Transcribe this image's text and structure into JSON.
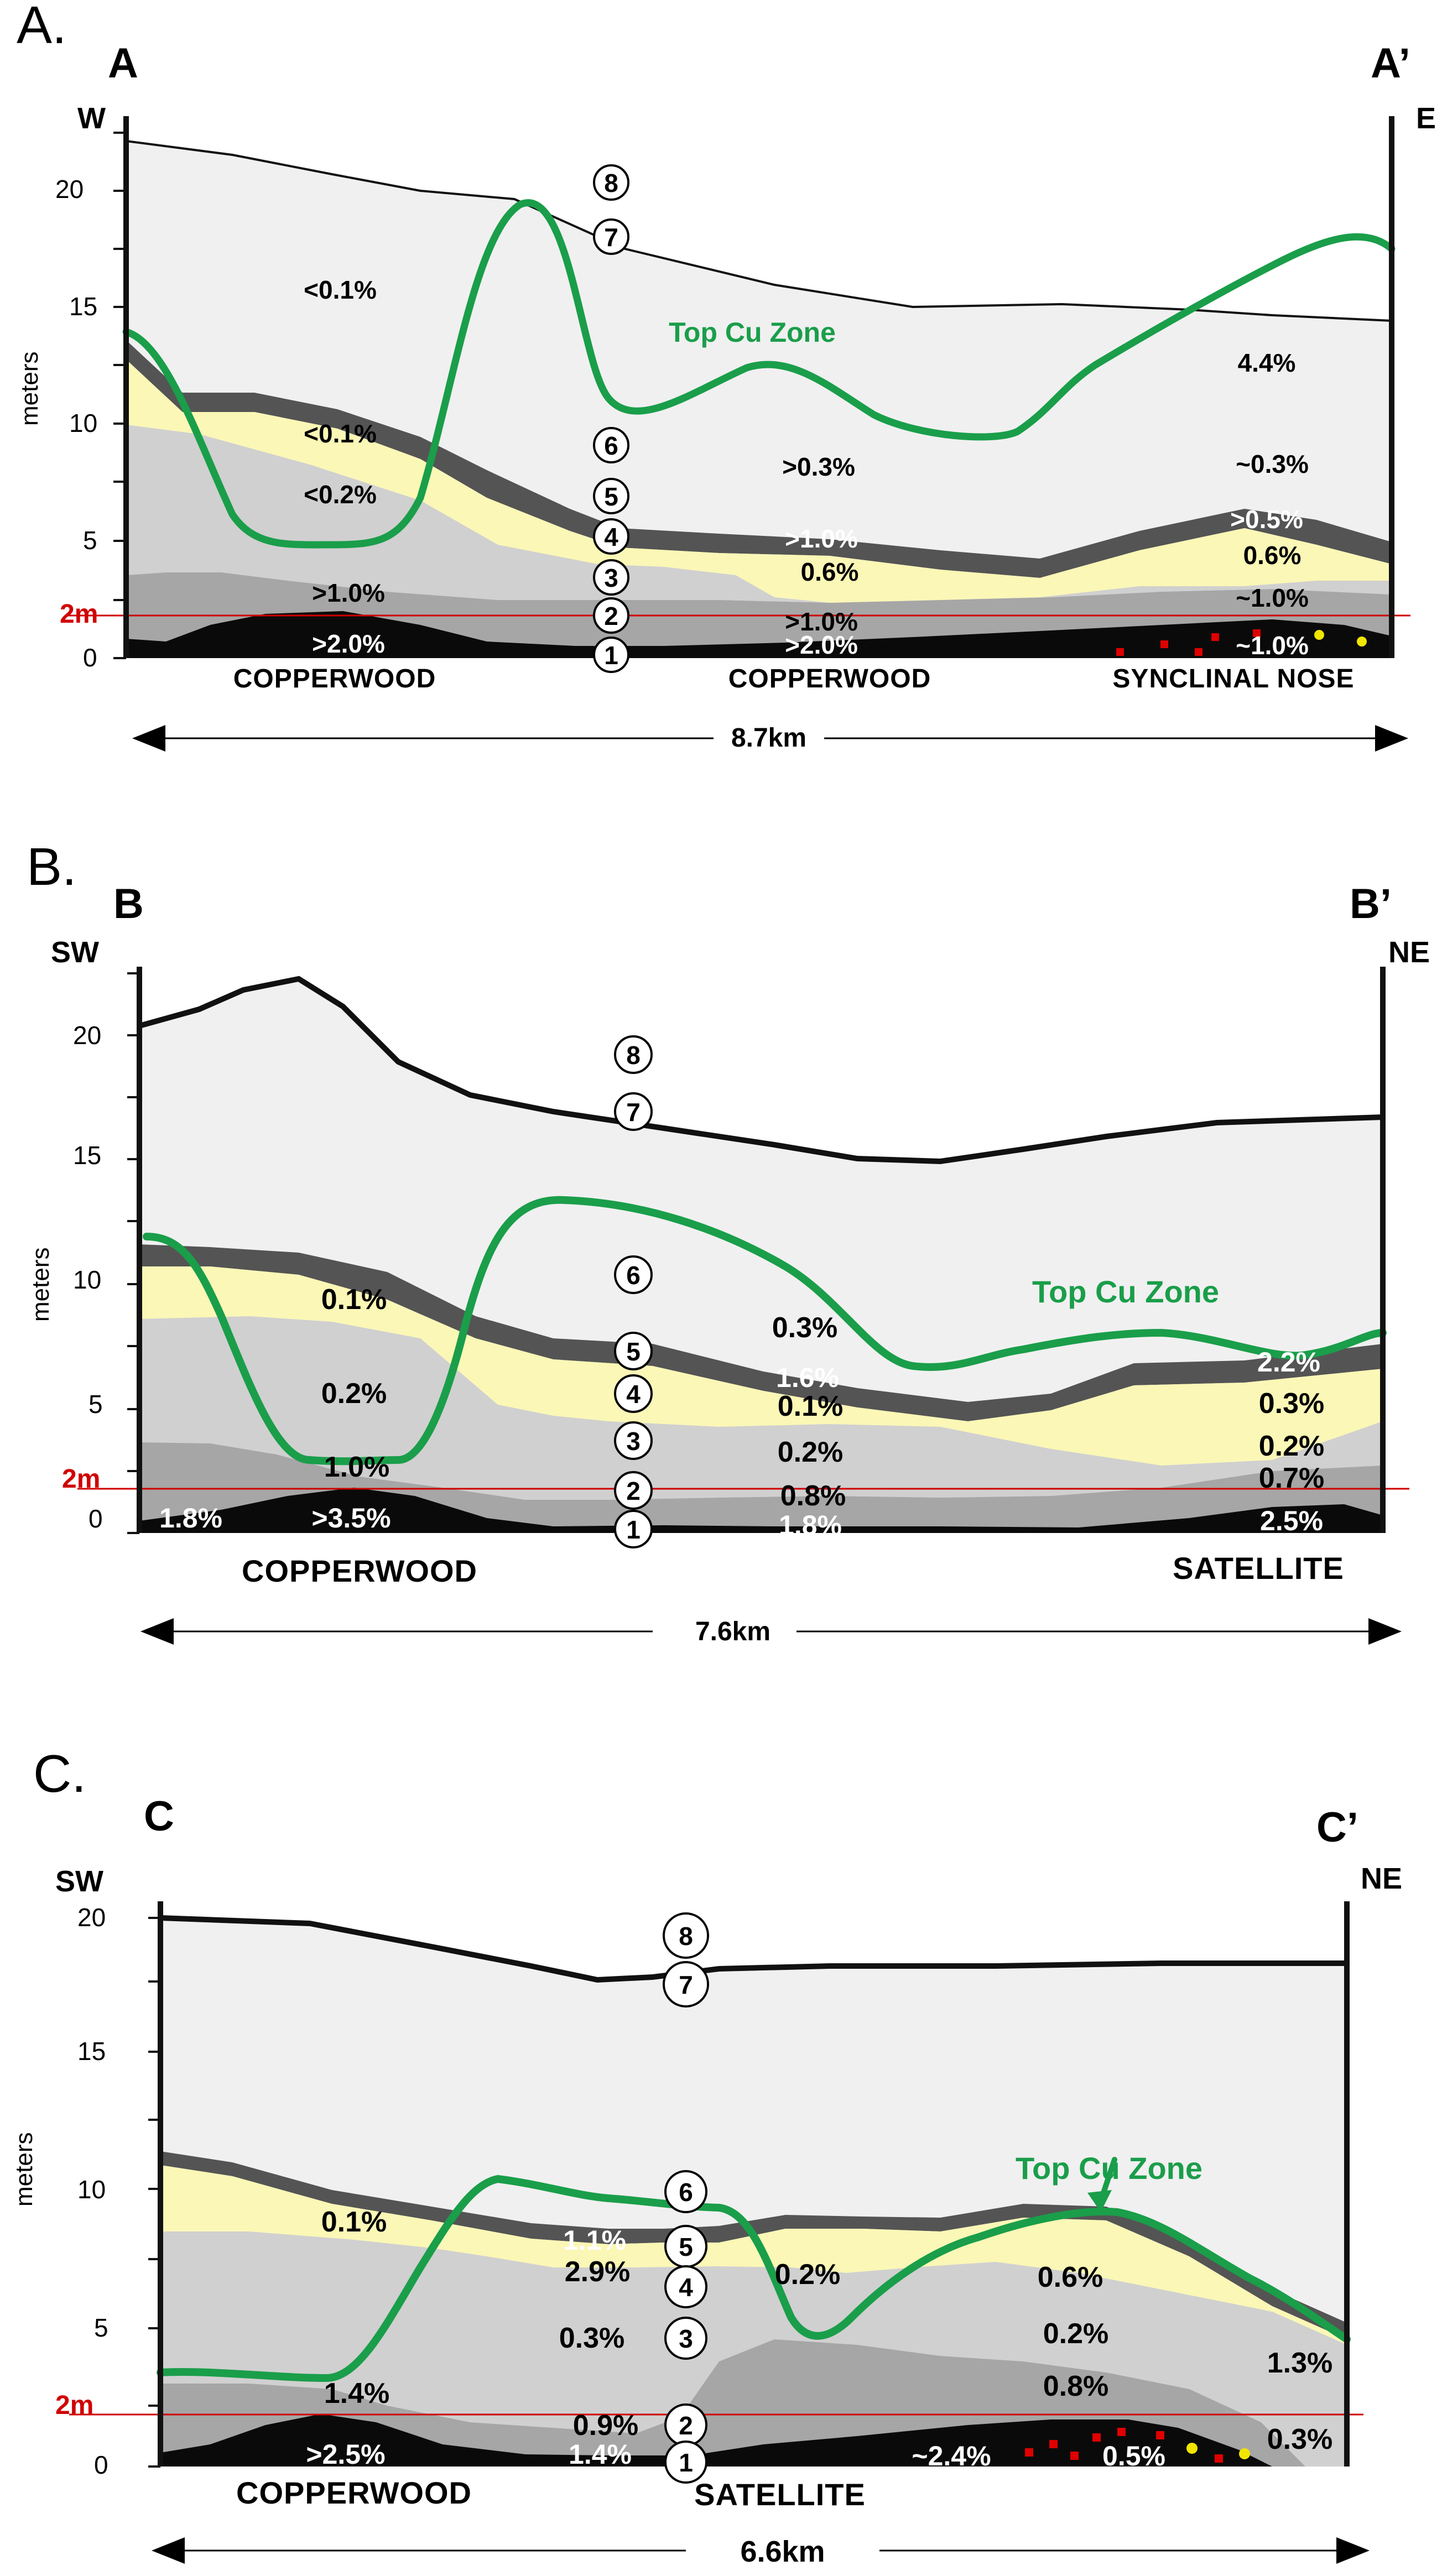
{
  "panels": [
    {
      "letter": "A.",
      "start_label": "A",
      "end_label": "A’",
      "start_dir": "W",
      "end_dir": "E",
      "y_axis_label": "meters",
      "y_ticks": [
        "0",
        "5",
        "10",
        "15",
        "20"
      ],
      "red_line_label": "2m",
      "top_cu_label": "Top Cu Zone",
      "units": [
        "8",
        "7",
        "6",
        "5",
        "4",
        "3",
        "2",
        "1"
      ],
      "grades": [
        "<0.1%",
        "<0.1%",
        "<0.2%",
        ">1.0%",
        ">2.0%",
        ">0.3%",
        ">1.0%",
        "0.6%",
        ">1.0%",
        ">2.0%",
        "4.4%",
        "~0.3%",
        ">0.5%",
        "0.6%",
        "~1.0%",
        "~1.0%"
      ],
      "locations": [
        "COPPERWOOD",
        "COPPERWOOD",
        "SYNCLINAL  NOSE"
      ],
      "distance": "8.7km"
    },
    {
      "letter": "B.",
      "start_label": "B",
      "end_label": "B’",
      "start_dir": "SW",
      "end_dir": "NE",
      "y_axis_label": "meters",
      "y_ticks": [
        "0",
        "5",
        "10",
        "15",
        "20"
      ],
      "red_line_label": "2m",
      "top_cu_label": "Top Cu Zone",
      "units": [
        "8",
        "7",
        "6",
        "5",
        "4",
        "3",
        "2",
        "1"
      ],
      "grades": [
        "0.1%",
        "0.2%",
        "1.0%",
        "1.8%",
        ">3.5%",
        "0.3%",
        "1.6%",
        "0.1%",
        "0.2%",
        "0.8%",
        "1.8%",
        "2.2%",
        "0.3%",
        "0.2%",
        "0.7%",
        "2.5%"
      ],
      "locations": [
        "COPPERWOOD",
        "SATELLITE"
      ],
      "distance": "7.6km"
    },
    {
      "letter": "C.",
      "start_label": "C",
      "end_label": "C’",
      "start_dir": "SW",
      "end_dir": "NE",
      "y_axis_label": "meters",
      "y_ticks": [
        "0",
        "5",
        "10",
        "15",
        "20"
      ],
      "red_line_label": "2m",
      "top_cu_label": "Top Cu Zone",
      "units": [
        "8",
        "7",
        "6",
        "5",
        "4",
        "3",
        "2",
        "1"
      ],
      "grades": [
        "0.1%",
        "1.4%",
        ">2.5%",
        "1.1%",
        "2.9%",
        "0.3%",
        "0.9%",
        "1.4%",
        "0.2%",
        "0.6%",
        "0.2%",
        "0.8%",
        "1.3%",
        "~2.4%",
        "0.5%",
        "0.3%"
      ],
      "locations": [
        "COPPERWOOD",
        "SATELLITE"
      ],
      "distance": "6.6km"
    }
  ],
  "colors": {
    "unit8_7": "#f0f0f0",
    "unit6_band": "#545454",
    "unit4_yellow": "#fbf7b6",
    "unit3": "#d0d0d0",
    "unit2": "#a6a6a6",
    "unit1": "#0a0a0a",
    "top_cu_zone": "#1a9e4a",
    "red_line": "#d00000"
  }
}
